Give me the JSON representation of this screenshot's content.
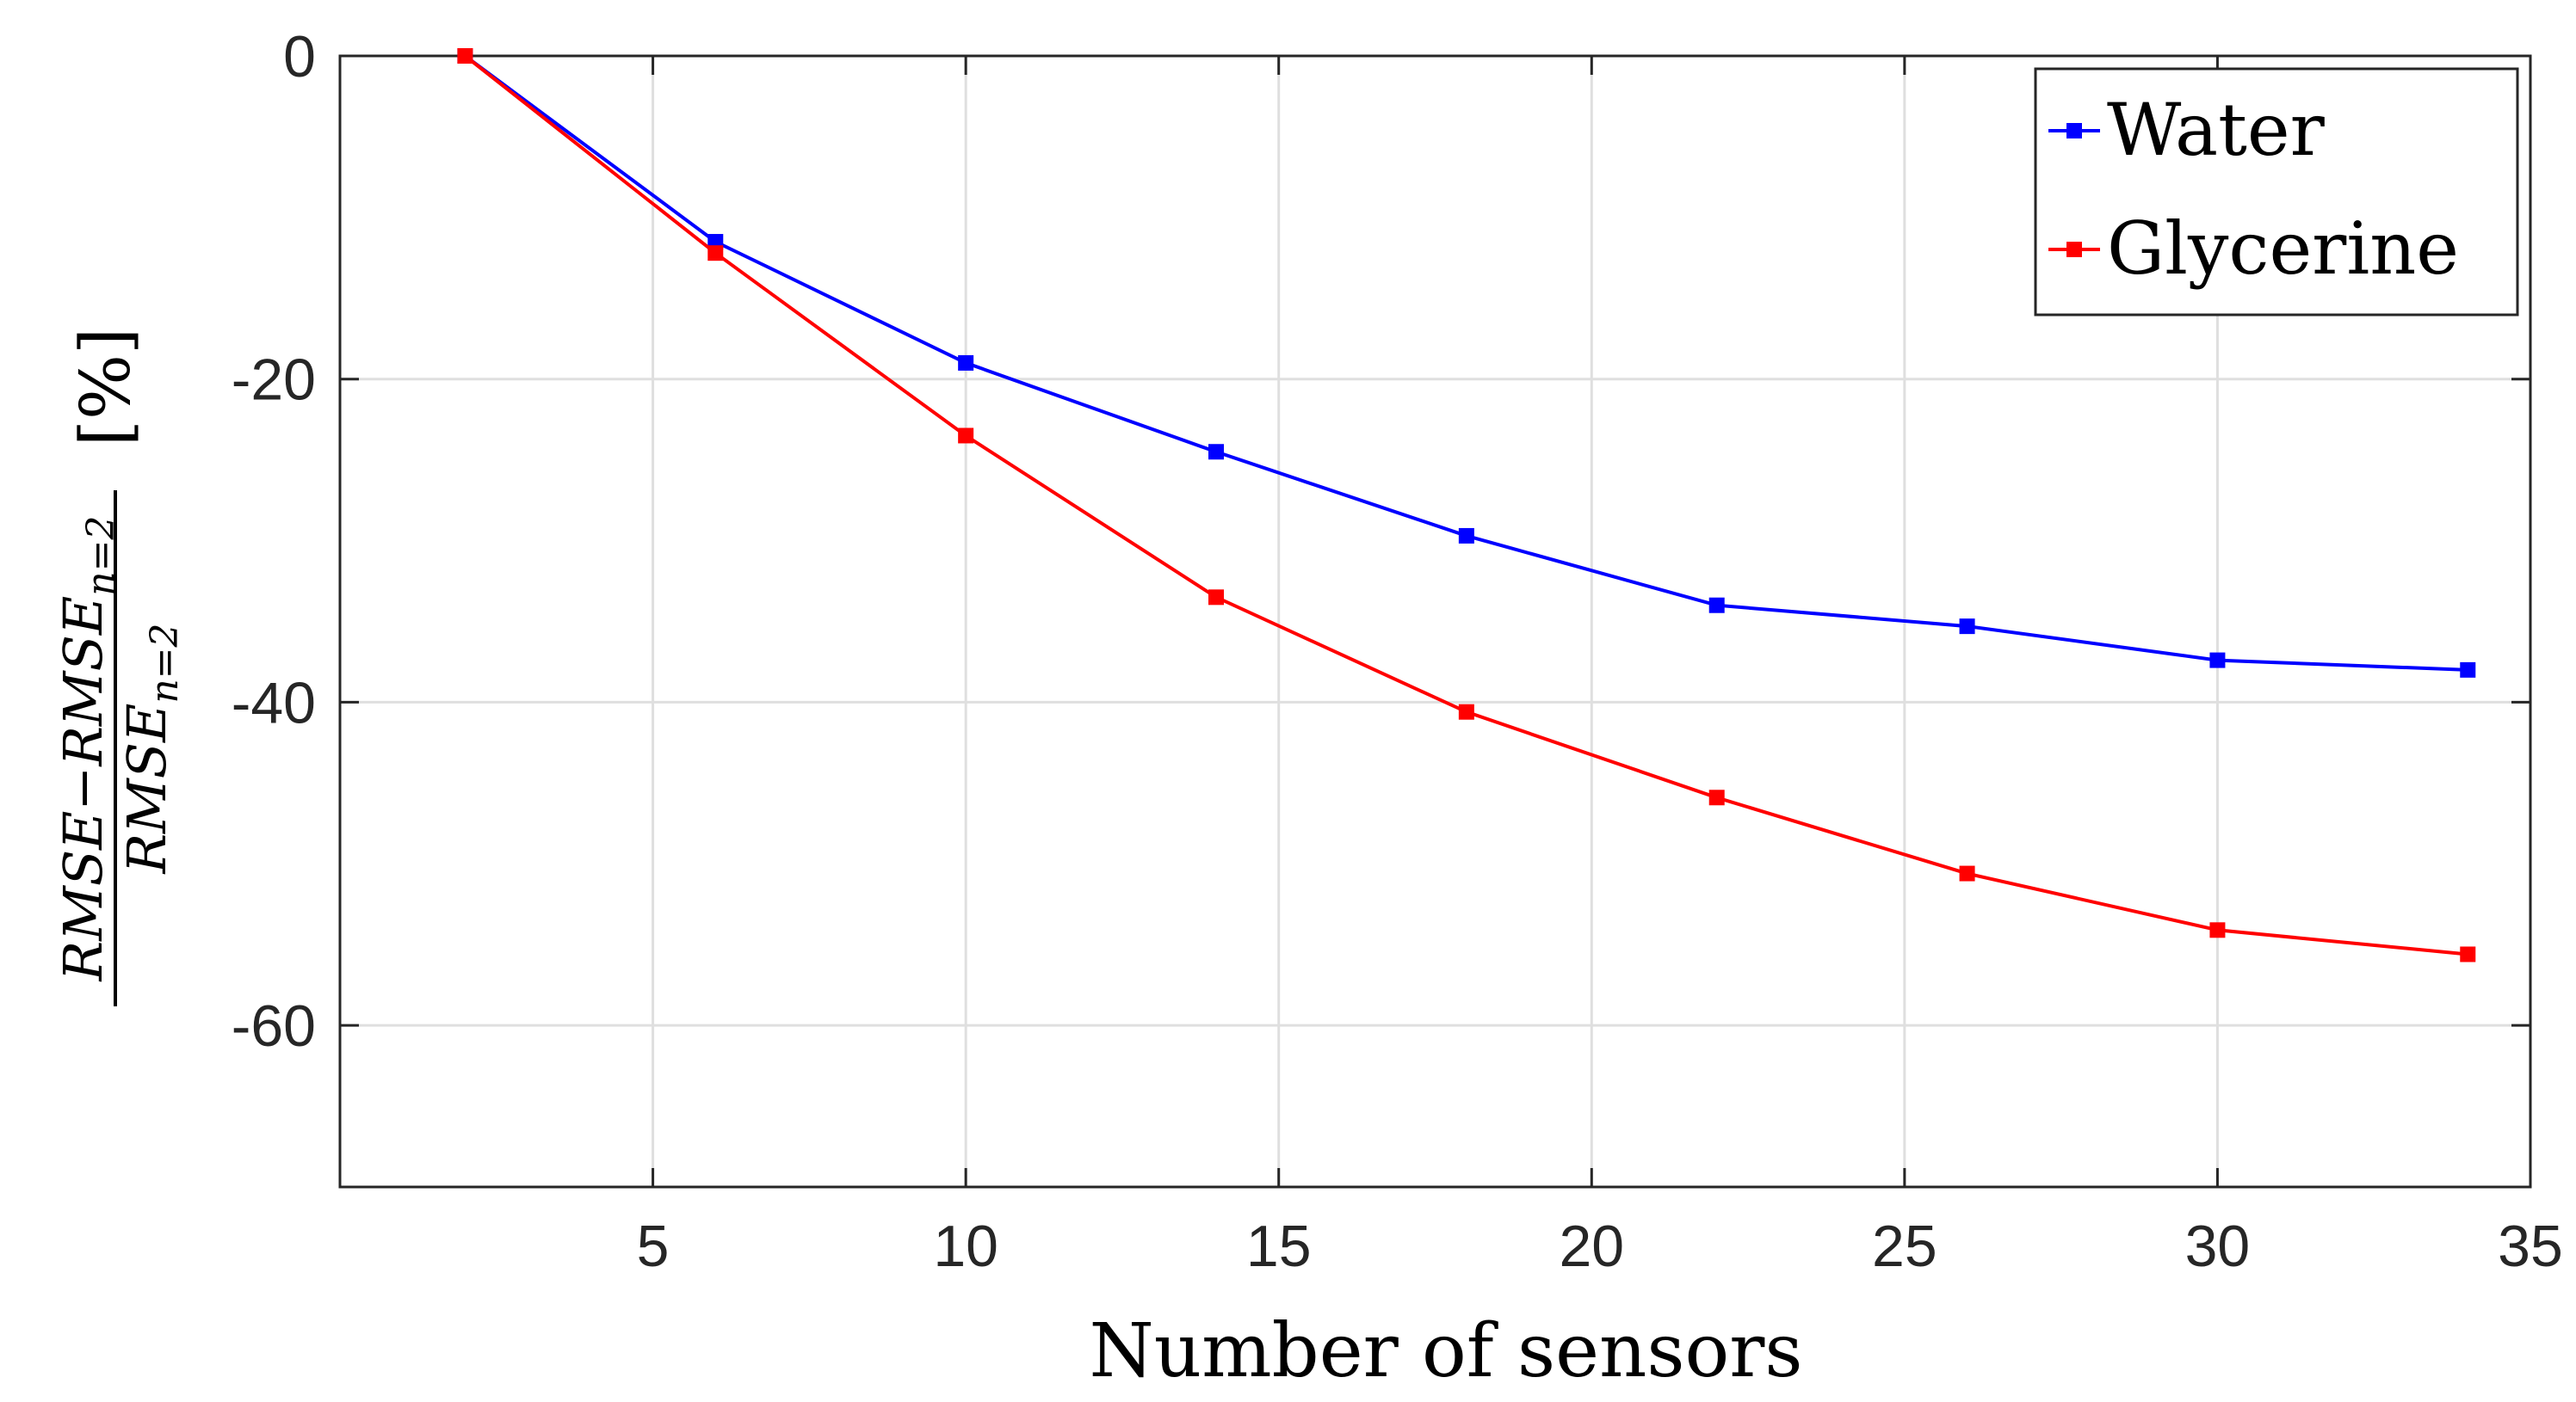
{
  "chart_data": {
    "type": "line",
    "xlabel": "Number of sensors",
    "ylabel": {
      "numerator": "RMSE−RMSE",
      "numerator_sub": "n=2",
      "denominator": "RMSE",
      "denominator_sub": "n=2",
      "unit": "[%]"
    },
    "xlim": [
      0,
      35
    ],
    "ylim": [
      -70,
      0
    ],
    "xticks": [
      5,
      10,
      15,
      20,
      25,
      30,
      35
    ],
    "yticks": [
      0,
      -20,
      -40,
      -60
    ],
    "grid": true,
    "legend_position": "top-right",
    "x": [
      2,
      6,
      10,
      14,
      18,
      22,
      26,
      30,
      34
    ],
    "series": [
      {
        "name": "Water",
        "color": "#0000ff",
        "values": [
          0,
          -11.5,
          -19,
          -24.5,
          -29.7,
          -34,
          -35.3,
          -37.4,
          -38
        ]
      },
      {
        "name": "Glycerine",
        "color": "#ff0000",
        "values": [
          0,
          -12.2,
          -23.5,
          -33.5,
          -40.6,
          -45.9,
          -50.6,
          -54.1,
          -55.6
        ]
      }
    ]
  }
}
